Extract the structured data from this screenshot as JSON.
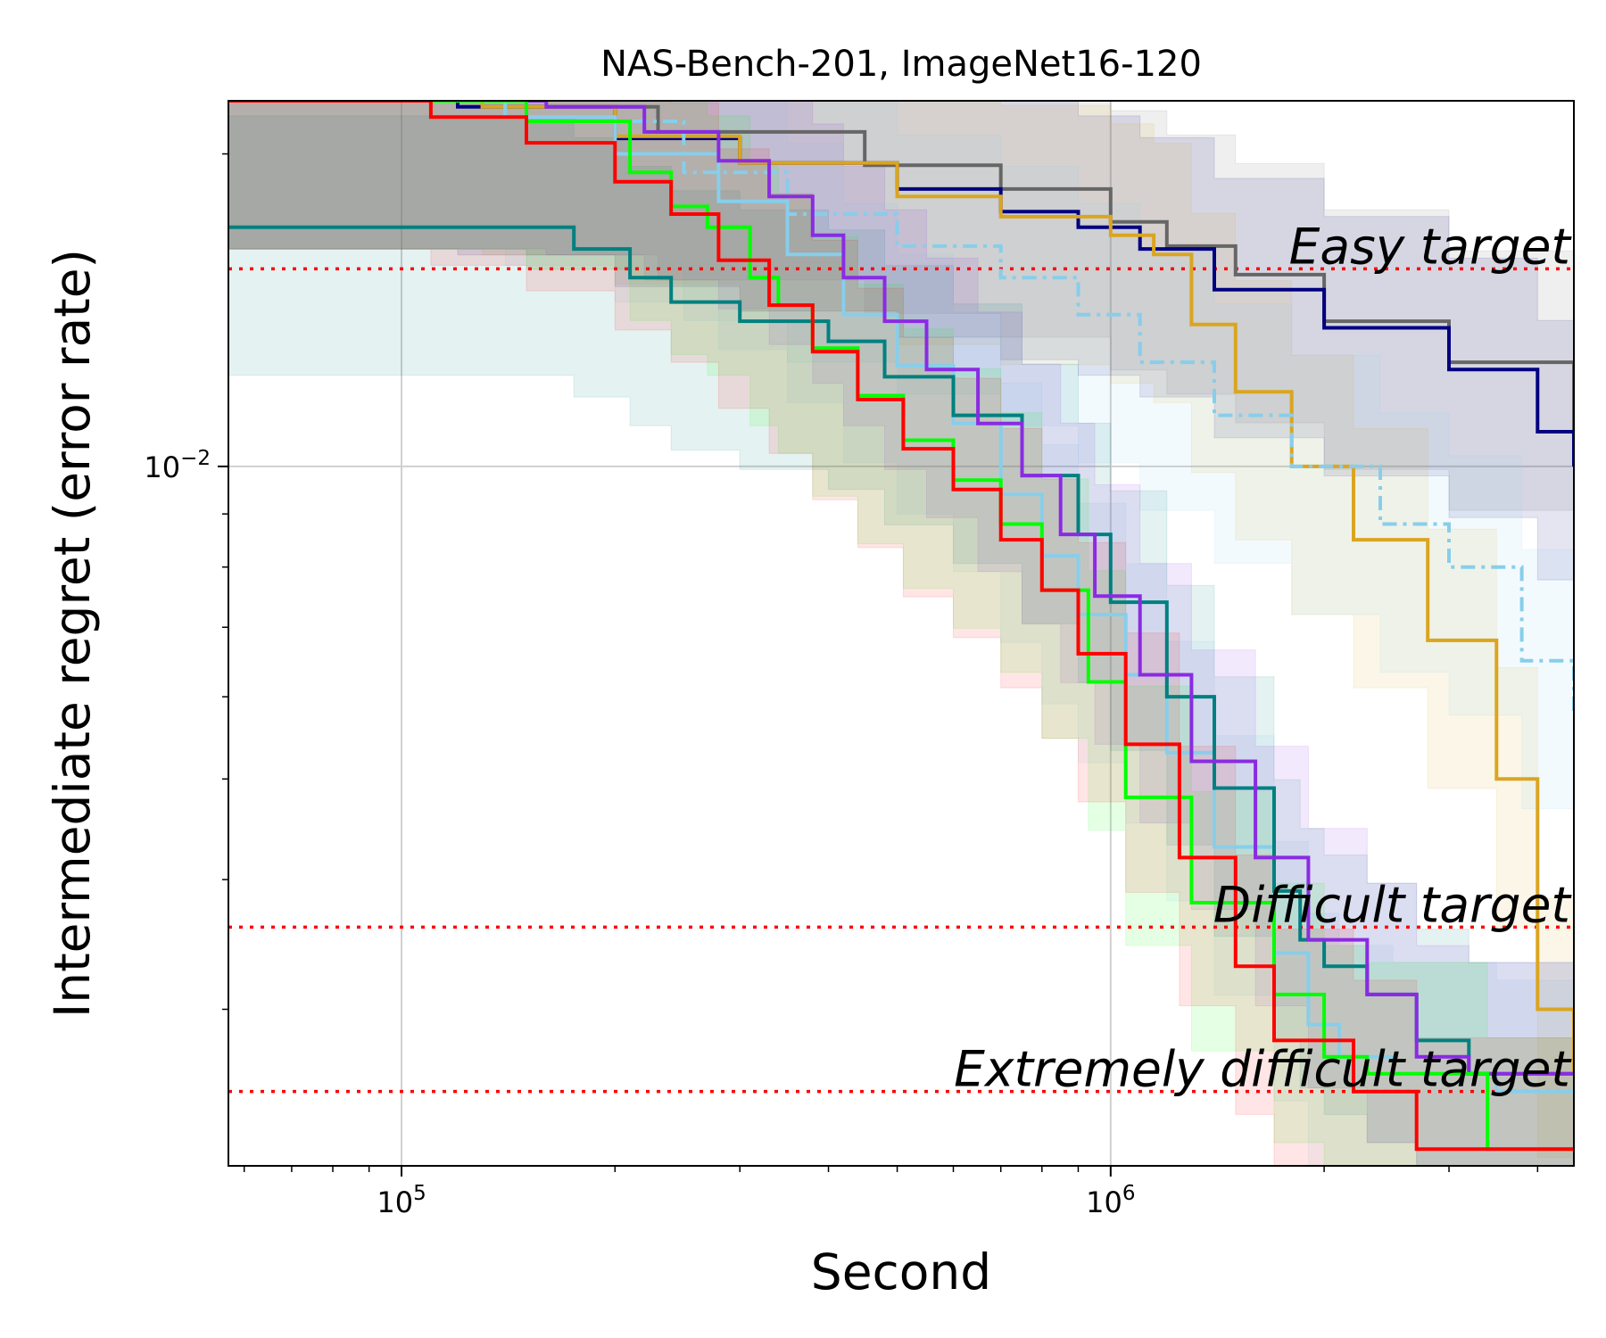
{
  "chart_data": {
    "type": "line",
    "title": "NAS-Bench-201, ImageNet16-120",
    "xlabel": "Second",
    "ylabel": "Intermediate regret (error rate)",
    "xscale": "log",
    "yscale": "log",
    "xlim": [
      57000,
      4500000
    ],
    "ylim": [
      0.00212,
      0.0225
    ],
    "grid": true,
    "xticks": [
      {
        "value": 100000,
        "base": "10",
        "exp": "5"
      },
      {
        "value": 1000000,
        "base": "10",
        "exp": "6"
      }
    ],
    "yticks": [
      {
        "value": 0.01,
        "base": "10",
        "exp": "−2"
      }
    ],
    "targets": [
      {
        "name": "easy",
        "label": "Easy target",
        "value": 0.0155,
        "color": "#ff0000"
      },
      {
        "name": "difficult",
        "label": "Difficult target",
        "value": 0.0036,
        "color": "#ff0000"
      },
      {
        "name": "extremely-difficult",
        "label": "Extremely difficult target",
        "value": 0.0025,
        "color": "#ff0000"
      }
    ],
    "series": [
      {
        "name": "gray",
        "color": "#666666",
        "dash": "",
        "band": true,
        "x": [
          57000,
          150000,
          230000,
          450000,
          700000,
          1000000,
          1200000,
          1500000,
          2000000,
          3000000,
          4500000
        ],
        "y": [
          0.0225,
          0.0222,
          0.021,
          0.0195,
          0.0185,
          0.0172,
          0.0163,
          0.0153,
          0.0138,
          0.0126,
          0.0108
        ]
      },
      {
        "name": "navy",
        "color": "#000080",
        "dash": "",
        "band": true,
        "x": [
          57000,
          120000,
          200000,
          300000,
          500000,
          700000,
          900000,
          1100000,
          1400000,
          2000000,
          3000000,
          4000000,
          4500000
        ],
        "y": [
          0.0225,
          0.0222,
          0.0207,
          0.0196,
          0.0185,
          0.0176,
          0.017,
          0.0162,
          0.0148,
          0.0136,
          0.0124,
          0.0108,
          0.01
        ]
      },
      {
        "name": "goldenrod",
        "color": "#daa520",
        "dash": "",
        "band": true,
        "x": [
          57000,
          130000,
          200000,
          300000,
          500000,
          700000,
          1000000,
          1150000,
          1300000,
          1500000,
          1800000,
          2200000,
          2800000,
          3500000,
          4000000,
          4500000
        ],
        "y": [
          0.0225,
          0.0222,
          0.0208,
          0.0196,
          0.0182,
          0.0174,
          0.0167,
          0.016,
          0.0137,
          0.0118,
          0.01,
          0.0085,
          0.0068,
          0.005,
          0.003,
          0.0026
        ]
      },
      {
        "name": "skyblue-dashdot",
        "color": "#87ceeb",
        "dash": "16,7,4,7",
        "band": true,
        "x": [
          57000,
          150000,
          250000,
          350000,
          500000,
          700000,
          900000,
          1100000,
          1400000,
          1800000,
          2400000,
          3000000,
          3800000,
          4500000
        ],
        "y": [
          0.0225,
          0.0215,
          0.0192,
          0.0175,
          0.0163,
          0.0152,
          0.014,
          0.0126,
          0.0112,
          0.01,
          0.0088,
          0.008,
          0.0065,
          0.0058
        ]
      },
      {
        "name": "skyblue",
        "color": "#87ceeb",
        "dash": "",
        "band": true,
        "x": [
          57000,
          140000,
          200000,
          280000,
          350000,
          420000,
          500000,
          600000,
          700000,
          800000,
          900000,
          1050000,
          1200000,
          1400000,
          1700000,
          1900000,
          2100000,
          2500000,
          3500000,
          4500000
        ],
        "y": [
          0.0225,
          0.0217,
          0.02,
          0.018,
          0.016,
          0.014,
          0.0125,
          0.011,
          0.0094,
          0.0082,
          0.0072,
          0.0063,
          0.0053,
          0.0043,
          0.0034,
          0.0029,
          0.0027,
          0.0026,
          0.0025,
          0.0025
        ]
      },
      {
        "name": "teal",
        "color": "#008080",
        "dash": "",
        "band": true,
        "x": [
          57000,
          155000,
          175000,
          210000,
          240000,
          300000,
          400000,
          480000,
          600000,
          750000,
          900000,
          1000000,
          1200000,
          1400000,
          1700000,
          1850000,
          2000000,
          2300000,
          2700000,
          3200000,
          4500000
        ],
        "y": [
          0.017,
          0.017,
          0.0162,
          0.0152,
          0.0144,
          0.0138,
          0.0132,
          0.0122,
          0.0112,
          0.0098,
          0.0086,
          0.0074,
          0.006,
          0.0049,
          0.0039,
          0.0035,
          0.0033,
          0.0031,
          0.0028,
          0.0026,
          0.0026
        ]
      },
      {
        "name": "blueviolet",
        "color": "#8a2be2",
        "dash": "",
        "band": true,
        "x": [
          57000,
          160000,
          220000,
          280000,
          330000,
          380000,
          420000,
          480000,
          550000,
          650000,
          750000,
          850000,
          950000,
          1100000,
          1300000,
          1600000,
          1900000,
          2300000,
          2700000,
          3200000,
          4500000
        ],
        "y": [
          0.0225,
          0.0222,
          0.021,
          0.0197,
          0.0182,
          0.0167,
          0.0152,
          0.0138,
          0.0124,
          0.011,
          0.0098,
          0.0086,
          0.0075,
          0.0063,
          0.0052,
          0.0042,
          0.0035,
          0.0031,
          0.0027,
          0.0026,
          0.0026
        ]
      },
      {
        "name": "lime",
        "color": "#00ff00",
        "dash": "",
        "band": true,
        "x": [
          57000,
          100000,
          150000,
          210000,
          240000,
          270000,
          310000,
          340000,
          380000,
          440000,
          510000,
          600000,
          700000,
          800000,
          930000,
          1050000,
          1300000,
          1700000,
          2000000,
          2300000,
          2900000,
          3400000,
          4500000
        ],
        "y": [
          0.0225,
          0.0225,
          0.0215,
          0.0192,
          0.0178,
          0.017,
          0.0152,
          0.0143,
          0.013,
          0.0117,
          0.0106,
          0.0097,
          0.0088,
          0.0076,
          0.0062,
          0.0048,
          0.0038,
          0.0031,
          0.0027,
          0.0026,
          0.0026,
          0.0022,
          0.0022
        ]
      },
      {
        "name": "red",
        "color": "#ff0000",
        "dash": "",
        "band": true,
        "x": [
          57000,
          80000,
          110000,
          150000,
          200000,
          240000,
          280000,
          330000,
          380000,
          440000,
          510000,
          600000,
          700000,
          800000,
          900000,
          1050000,
          1250000,
          1500000,
          1700000,
          2200000,
          2700000,
          4500000
        ],
        "y": [
          0.0225,
          0.0225,
          0.0217,
          0.0205,
          0.0188,
          0.0175,
          0.0158,
          0.0143,
          0.0129,
          0.0116,
          0.0104,
          0.0095,
          0.0085,
          0.0076,
          0.0066,
          0.0054,
          0.0042,
          0.0033,
          0.0028,
          0.0025,
          0.0022,
          0.0022
        ]
      }
    ]
  }
}
